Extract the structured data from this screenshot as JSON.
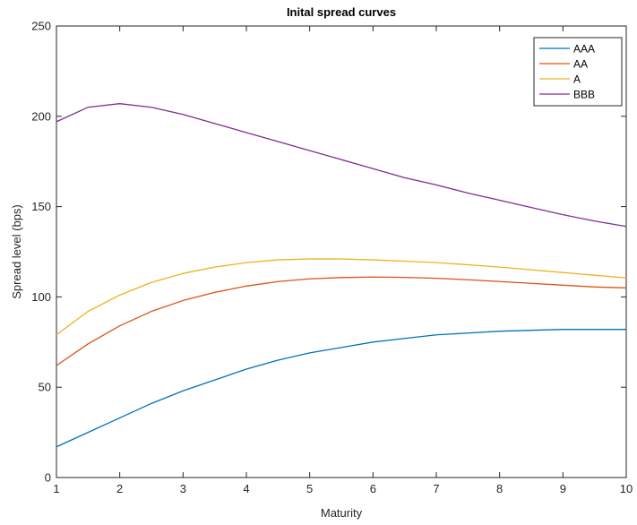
{
  "chart_data": {
    "type": "line",
    "title": "Inital spread curves",
    "xlabel": "Maturity",
    "ylabel": "Spread level (bps)",
    "xlim": [
      1,
      10
    ],
    "ylim": [
      0,
      250
    ],
    "xticks": [
      1,
      2,
      3,
      4,
      5,
      6,
      7,
      8,
      9,
      10
    ],
    "yticks": [
      0,
      50,
      100,
      150,
      200,
      250
    ],
    "grid": false,
    "legend_position": "top-right",
    "x": [
      1,
      1.5,
      2,
      2.5,
      3,
      3.5,
      4,
      4.5,
      5,
      5.5,
      6,
      6.5,
      7,
      7.5,
      8,
      8.5,
      9,
      9.5,
      10
    ],
    "series": [
      {
        "name": "AAA",
        "color": "#0072BD",
        "values": [
          17,
          25,
          33,
          41,
          48,
          54,
          60,
          65,
          69,
          72,
          75,
          77,
          79,
          80,
          81,
          81.5,
          82,
          82,
          82
        ]
      },
      {
        "name": "AA",
        "color": "#D95319",
        "values": [
          62,
          74,
          84,
          92,
          98,
          102.5,
          106,
          108.5,
          110,
          110.7,
          111,
          110.8,
          110.3,
          109.5,
          108.5,
          107.5,
          106.5,
          105.5,
          105
        ]
      },
      {
        "name": "A",
        "color": "#EDB120",
        "values": [
          79,
          92,
          101,
          108,
          113,
          116.5,
          119,
          120.5,
          121,
          121,
          120.5,
          119.8,
          119,
          117.8,
          116.5,
          115,
          113.5,
          112,
          110.5
        ]
      },
      {
        "name": "BBB",
        "color": "#7E2F8E",
        "values": [
          197,
          205,
          207,
          205,
          201,
          196,
          191,
          186,
          181,
          176,
          171,
          166,
          162,
          157.5,
          153.5,
          149.5,
          145.5,
          142,
          139
        ]
      }
    ]
  }
}
